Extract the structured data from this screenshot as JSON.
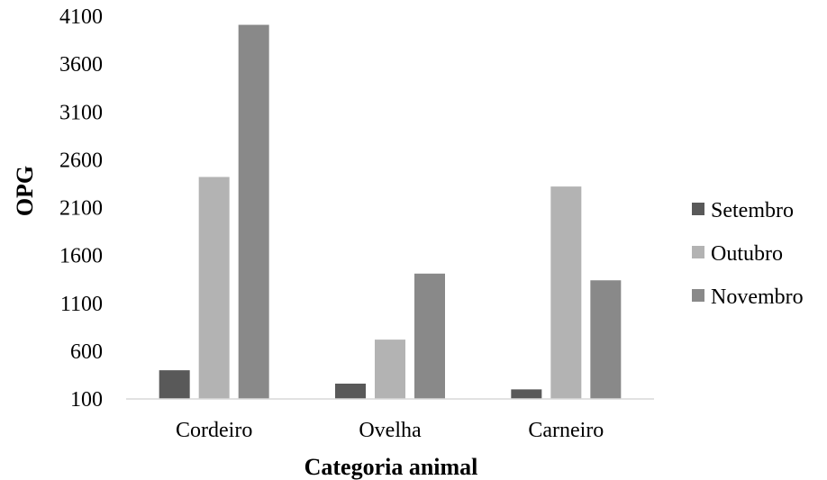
{
  "chart_data": {
    "type": "bar",
    "title": "",
    "xlabel": "Categoria animal",
    "ylabel": "OPG",
    "categories": [
      "Cordeiro",
      "Ovelha",
      "Carneiro"
    ],
    "series": [
      {
        "name": "Setembro",
        "values": [
          400,
          260,
          200
        ],
        "color": "#595959"
      },
      {
        "name": "Outubro",
        "values": [
          2420,
          720,
          2320
        ],
        "color": "#b3b3b3"
      },
      {
        "name": "Novembro",
        "values": [
          4010,
          1410,
          1340
        ],
        "color": "#898989"
      }
    ],
    "ylim": [
      100,
      4100
    ],
    "yticks": [
      100,
      600,
      1100,
      1600,
      2100,
      2600,
      3100,
      3600,
      4100
    ],
    "grid": false,
    "legend_position": "right"
  }
}
